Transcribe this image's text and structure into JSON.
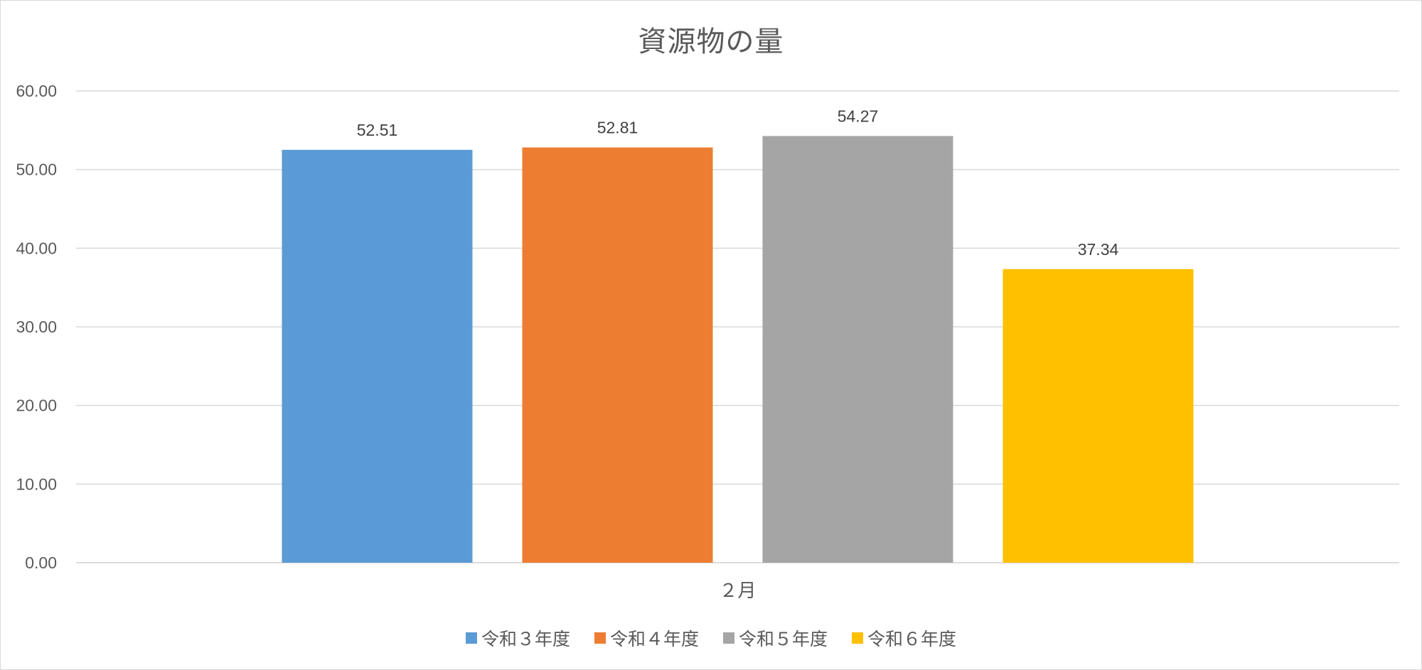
{
  "chart_data": {
    "type": "bar",
    "title": "資源物の量",
    "categories": [
      "２月"
    ],
    "series": [
      {
        "name": "令和３年度",
        "values": [
          52.51
        ],
        "color": "#5B9BD5"
      },
      {
        "name": "令和４年度",
        "values": [
          52.81
        ],
        "color": "#ED7D31"
      },
      {
        "name": "令和５年度",
        "values": [
          54.27
        ],
        "color": "#A5A5A5"
      },
      {
        "name": "令和６年度",
        "values": [
          37.34
        ],
        "color": "#FFC000"
      }
    ],
    "data_labels": [
      "52.51",
      "52.81",
      "54.27",
      "37.34"
    ],
    "ylim": [
      0,
      60
    ],
    "yticks": [
      "0.00",
      "10.00",
      "20.00",
      "30.00",
      "40.00",
      "50.00",
      "60.00"
    ],
    "xlabel": "",
    "ylabel": "",
    "grid": true,
    "legend_position": "bottom"
  }
}
